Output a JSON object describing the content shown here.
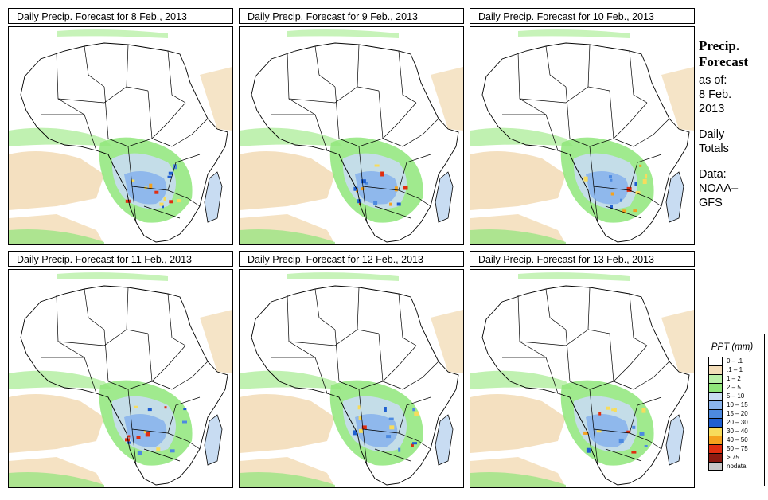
{
  "panels": [
    {
      "title": "Daily Precip. Forecast for  8 Feb., 2013"
    },
    {
      "title": "Daily Precip. Forecast for  9 Feb., 2013"
    },
    {
      "title": "Daily Precip. Forecast for  10 Feb., 2013"
    },
    {
      "title": "Daily Precip. Forecast for  11 Feb., 2013"
    },
    {
      "title": "Daily Precip. Forecast for  12 Feb., 2013"
    },
    {
      "title": "Daily Precip. Forecast for  13 Feb., 2013"
    }
  ],
  "sidebar": {
    "heading1": "Precip.",
    "heading2": "Forecast",
    "asof": "as of:",
    "date1": "8 Feb.",
    "date2": "2013",
    "daily1": "Daily",
    "daily2": "Totals",
    "data1": "Data:",
    "data2": "NOAA–",
    "data3": "GFS"
  },
  "legend": {
    "title": "PPT (mm)",
    "items": [
      {
        "label": "0 – .1",
        "color": "#ffffff"
      },
      {
        "label": ".1 – 1",
        "color": "#f3ddb9"
      },
      {
        "label": "1 – 2",
        "color": "#b9f0a8"
      },
      {
        "label": "2 – 5",
        "color": "#8fe67a"
      },
      {
        "label": "5 – 10",
        "color": "#c8dcf2"
      },
      {
        "label": "10 – 15",
        "color": "#8ab4ec"
      },
      {
        "label": "15 – 20",
        "color": "#4d8ae0"
      },
      {
        "label": "20 – 30",
        "color": "#1f5fd0"
      },
      {
        "label": "30 – 40",
        "color": "#f7dc5c"
      },
      {
        "label": "40 – 50",
        "color": "#f5a21e"
      },
      {
        "label": "50 – 75",
        "color": "#e02e10"
      },
      {
        "label": "> 75",
        "color": "#8c1a10"
      },
      {
        "label": "nodata",
        "color": "#c8c8c8"
      }
    ]
  }
}
